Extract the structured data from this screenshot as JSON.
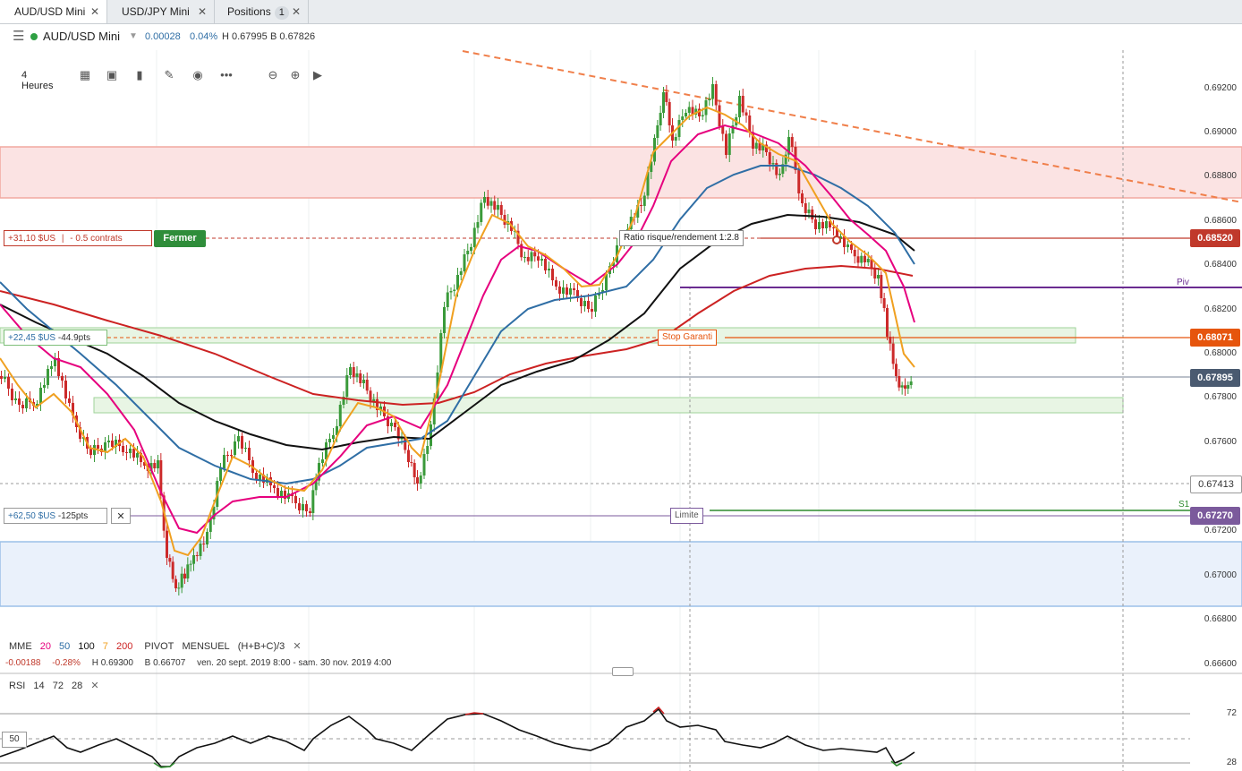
{
  "tabs": [
    {
      "label": "AUD/USD Mini",
      "close": "✕"
    },
    {
      "label": "USD/JPY Mini",
      "close": "✕"
    },
    {
      "label": "Positions",
      "badge": "1",
      "close": "✕"
    }
  ],
  "instrument": {
    "name": "AUD/USD Mini",
    "change": "0.00028",
    "change_pct": "0.04%",
    "high": "H 0.67995",
    "bid": "B 0.67826"
  },
  "toolbar": {
    "timeframe": "4 Heures",
    "icons": [
      "grid-icon",
      "layout-icon",
      "bar-chart-icon",
      "pencil-icon",
      "eye-icon",
      "more-icon",
      "zoom-out-icon",
      "zoom-in-icon",
      "play-icon"
    ]
  },
  "price_axis": [
    "0.69200",
    "0.69000",
    "0.68800",
    "0.68600",
    "0.68400",
    "0.68200",
    "0.68000",
    "0.67800",
    "0.67600",
    "0.67200",
    "0.67000",
    "0.66800",
    "0.66600"
  ],
  "price_tags": {
    "take_profit": "0.68520",
    "stop": "0.68071",
    "current": "0.67895",
    "crosshair": "0.67413",
    "limit": "0.67270"
  },
  "orders": {
    "position_pl": "+31,10 $US",
    "position_size": "- 0.5 contrats",
    "close_button": "Fermer",
    "ratio_label": "Ratio risque/rendement 1:2.8",
    "stop_pl": "+22,45 $US",
    "stop_pts": "-44.9pts",
    "stop_label": "Stop Garanti",
    "limit_pl": "+62,50 $US",
    "limit_pts": "-125pts",
    "limit_close": "✕",
    "limit_label": "Limite",
    "piv_label": "Piv",
    "s1_label": "S1"
  },
  "indicators": {
    "mme_label": "MME",
    "mme_values": [
      "20",
      "50",
      "100",
      "7",
      "200"
    ],
    "mme_colors": [
      "#e6007e",
      "#2f6ea5",
      "#111111",
      "#f0a020",
      "#cc2222"
    ],
    "pivot_label": "PIVOT",
    "pivot_period": "MENSUEL",
    "pivot_formula": "(H+B+C)/3",
    "remove": "✕",
    "change": "-0.00188",
    "change_pct": "-0.28%",
    "high": "H 0.69300",
    "low": "B 0.66707",
    "range": "ven. 20 sept. 2019 8:00 - sam. 30 nov. 2019 4:00"
  },
  "rsi": {
    "label": "RSI",
    "params": [
      "14",
      "72",
      "28"
    ],
    "remove": "✕",
    "level_high": "72",
    "level_low": "28",
    "mid": "50"
  },
  "colors": {
    "accent_green": "#2f8d3a",
    "tp_red": "#c0392b",
    "stop_orange": "#e6550d",
    "current_slate": "#4a5a70",
    "limit_purple": "#7b5a9c"
  }
}
